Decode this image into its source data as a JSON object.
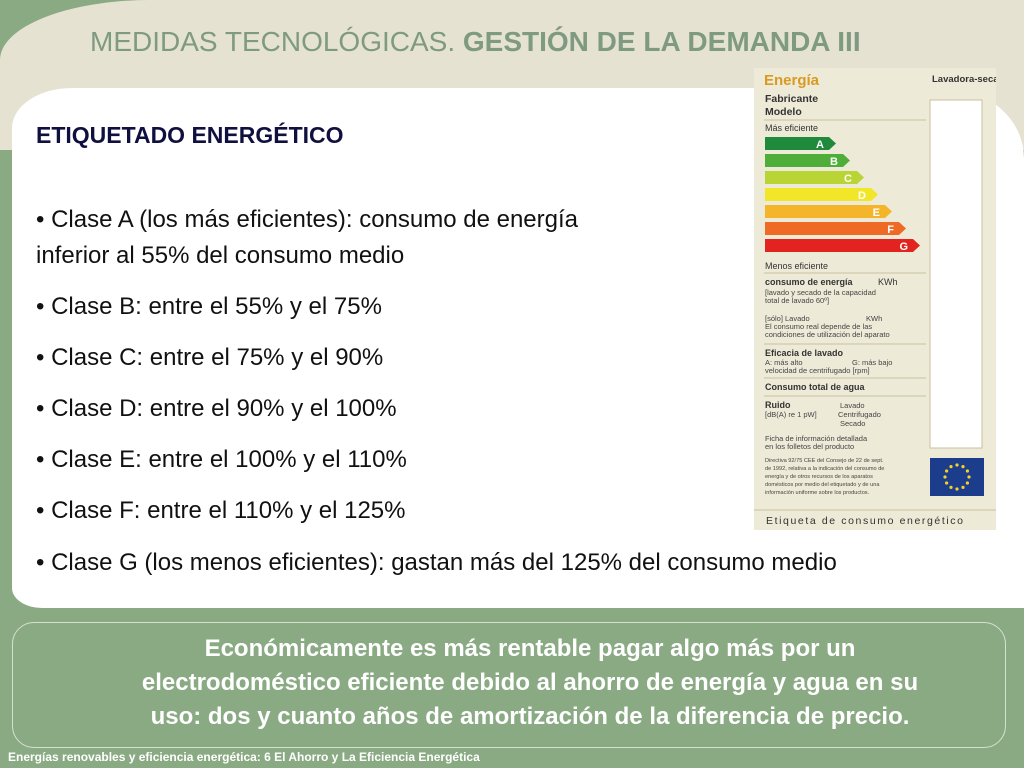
{
  "slide": {
    "title_light": "MEDIDAS TECNOLÓGICAS. ",
    "title_bold": "GESTIÓN DE LA DEMANDA III",
    "heading": "ETIQUETADO ENERGÉTICO",
    "bullets": [
      "• Clase A (los más eficientes): consumo de energía",
      " inferior al 55% del consumo medio",
      "• Clase B: entre el 55% y el 75%",
      "• Clase C: entre el 75% y el 90%",
      "• Clase D: entre el 90% y el 100%",
      "• Clase E: entre el 100% y el 110%",
      "• Clase F: entre el 110% y el 125%",
      "• Clase G (los menos eficientes): gastan más del 125% del consumo medio"
    ],
    "bottom_lines": [
      "Económicamente es más rentable pagar algo más por un",
      "electrodoméstico eficiente debido al ahorro de energía y agua en su",
      "uso:  dos y cuanto años de amortización de  la diferencia de precio."
    ],
    "footer": "Energías renovables y eficiencia energética: 6 El Ahorro y La Eficiencia Energética"
  },
  "energy_label": {
    "title": "Energía",
    "appliance": "Lavadora-secadora",
    "manufacturer": "Fabricante",
    "model": "Modelo",
    "most_efficient": "Más eficiente",
    "least_efficient": "Menos eficiente",
    "classes": [
      {
        "letter": "A",
        "color": "#1f8a3c"
      },
      {
        "letter": "B",
        "color": "#4fae3a"
      },
      {
        "letter": "C",
        "color": "#b8d435"
      },
      {
        "letter": "D",
        "color": "#f2e629"
      },
      {
        "letter": "E",
        "color": "#f5b52a"
      },
      {
        "letter": "F",
        "color": "#ef6a25"
      },
      {
        "letter": "G",
        "color": "#e2231f"
      }
    ],
    "consumption": "consumo de energía",
    "kwh": "KWh",
    "consumption_detail_1": "[lavado y secado de la capacidad",
    "consumption_detail_2": "total de lavado 60º]",
    "wash_only": "[sólo] Lavado",
    "kwh2": "KWh",
    "real_consumption_1": "El consumo real depende de las",
    "real_consumption_2": "condiciones de utilización del aparato",
    "wash_efficiency": "Eficacia de lavado",
    "scale_high": "A: más alto",
    "scale_low": "G: más bajo",
    "spin_speed": "velocidad de centrifugado [rpm]",
    "water_total": "Consumo total de agua",
    "noise": "Ruido",
    "noise_unit": "[dB(A) re 1 pW]",
    "noise_wash": "Lavado",
    "noise_spin": "Centrifugado",
    "noise_dry": "Secado",
    "info_sheet_1": "Ficha de información detallada",
    "info_sheet_2": "en los folletos del producto",
    "directive_1": "Directiva 92/75 CEE del Consejo de 22 de sept.",
    "directive_2": "de 1992, relativa a la indicación del consumo de",
    "directive_3": "energía y de otros recursos de los aparatos",
    "directive_4": "domésticos por medio del etiquetado y de una",
    "directive_5": "información uniforme sobre los productos.",
    "footer": "Etiqueta de consumo energético"
  }
}
